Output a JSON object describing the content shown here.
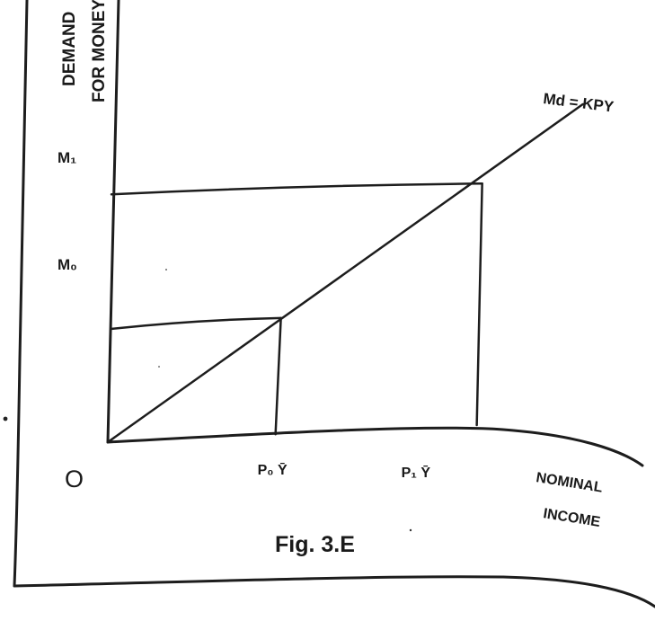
{
  "chart_data": {
    "type": "line",
    "title": "Fig. 3.E",
    "ylabel": [
      "DEMAND",
      "FOR MONEY"
    ],
    "xlabel": [
      "NOMINAL",
      "INCOME"
    ],
    "origin_label": "O",
    "y_ticks": [
      {
        "label": "M₁",
        "value": 0.75
      },
      {
        "label": "M₀",
        "value": 0.36
      }
    ],
    "x_ticks": [
      {
        "label": "P₀ Ȳ",
        "value": 0.43
      },
      {
        "label": "P₁ Ȳ",
        "value": 0.93
      }
    ],
    "series": [
      {
        "name": "Md = KPY",
        "x": [
          0,
          1.18
        ],
        "y": [
          0,
          0.98
        ]
      }
    ],
    "guides": [
      {
        "x": 0.43,
        "y": 0.36
      },
      {
        "x": 0.93,
        "y": 0.75
      }
    ],
    "xlim": [
      0,
      1.25
    ],
    "ylim": [
      0,
      1.1
    ],
    "grid": false,
    "legend": "none"
  }
}
